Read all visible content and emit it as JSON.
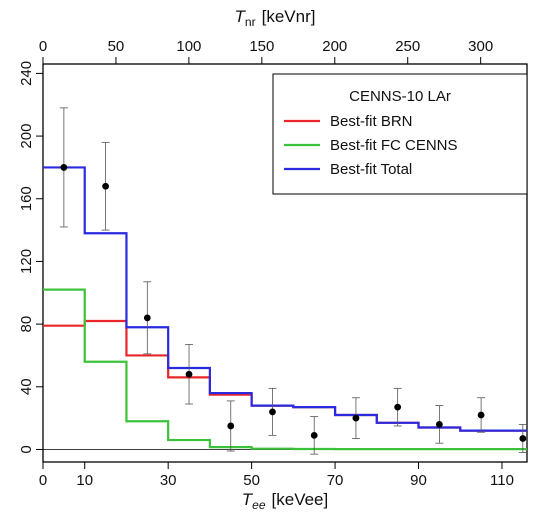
{
  "chart_data": {
    "type": "line",
    "title": "",
    "xlabel": {
      "symbol": "T",
      "sub": "ee",
      "unit": "[keVee]"
    },
    "x2label": {
      "symbol": "T",
      "sub": "nr",
      "unit": "[keVnr]"
    },
    "ylabel": "",
    "xlim": [
      0,
      116
    ],
    "ylim": [
      -8,
      246
    ],
    "x2_scale": 2.86,
    "x_ticks": [
      0,
      10,
      30,
      50,
      70,
      90,
      110
    ],
    "x_tick_labels": [
      "0",
      "10",
      "30",
      "50",
      "70",
      "90",
      "110"
    ],
    "x2_ticks": [
      0,
      50,
      100,
      150,
      200,
      250,
      300
    ],
    "x2_tick_labels": [
      "0",
      "50",
      "100",
      "150",
      "200",
      "250",
      "300"
    ],
    "y_ticks": [
      0,
      40,
      80,
      120,
      160,
      200,
      240
    ],
    "y_tick_labels": [
      "0",
      "40",
      "80",
      "120",
      "160",
      "200",
      "240"
    ],
    "bin_edges": [
      0,
      10,
      20,
      30,
      40,
      50,
      60,
      70,
      80,
      90,
      100,
      110,
      116
    ],
    "series": [
      {
        "name": "Best-fit BRN",
        "color": "#e8252a",
        "values": [
          79,
          82,
          60,
          46,
          35,
          28,
          27,
          22,
          17,
          14,
          12,
          12
        ]
      },
      {
        "name": "Best-fit FC CENNS",
        "color": "#3cc23a",
        "values": [
          102,
          56,
          18,
          6,
          1.5,
          0.5,
          0.3,
          0.2,
          0.2,
          0.2,
          0.2,
          0.2
        ]
      },
      {
        "name": "Best-fit Total",
        "color": "#2a2ae0",
        "values": [
          180,
          138,
          78,
          52,
          36,
          28,
          27,
          22,
          17,
          14,
          12,
          12
        ]
      }
    ],
    "data_points": {
      "x": [
        5,
        15,
        25,
        35,
        45,
        55,
        65,
        75,
        85,
        95,
        105,
        115
      ],
      "y": [
        180,
        168,
        84,
        48,
        15,
        24,
        9,
        20,
        27,
        16,
        22,
        7
      ],
      "err": [
        38,
        28,
        23,
        19,
        16,
        15,
        12,
        13,
        12,
        12,
        11,
        9
      ]
    },
    "legend": {
      "title": "CENNS-10 LAr",
      "position": "top-right"
    },
    "grid": false
  }
}
